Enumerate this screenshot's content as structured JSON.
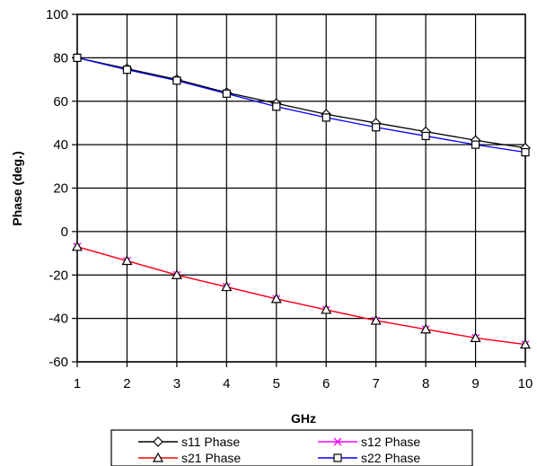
{
  "chart_data": {
    "type": "line",
    "xlabel": "GHz",
    "ylabel": "Phase (deg.)",
    "x": [
      1,
      2,
      3,
      4,
      5,
      6,
      7,
      8,
      9,
      10
    ],
    "xlim": [
      1,
      10
    ],
    "ylim": [
      -60,
      100
    ],
    "xticks": [
      "1",
      "2",
      "3",
      "4",
      "5",
      "6",
      "7",
      "8",
      "9",
      "10"
    ],
    "yticks": [
      "100",
      "80",
      "60",
      "40",
      "20",
      "0",
      "-20",
      "-40",
      "-60"
    ],
    "grid": true,
    "legend_position": "bottom",
    "series": [
      {
        "name": "s11 Phase",
        "color": "#000000",
        "marker": "diamond",
        "values": [
          80,
          75,
          70,
          64,
          59,
          54,
          50,
          46,
          42,
          38.5
        ]
      },
      {
        "name": "s12 Phase",
        "color": "#ff00ff",
        "marker": "x",
        "values": [
          -7,
          -13.5,
          -20,
          -25.5,
          -31,
          -36,
          -41,
          -45,
          -49,
          -52
        ]
      },
      {
        "name": "s21 Phase",
        "color": "#ff0000",
        "marker": "triangle",
        "values": [
          -7,
          -13.5,
          -20,
          -25.5,
          -31,
          -36,
          -41,
          -45,
          -49,
          -52
        ]
      },
      {
        "name": "s22 Phase",
        "color": "#0000ff",
        "marker": "square",
        "values": [
          80,
          74.5,
          69.5,
          63.5,
          57.5,
          52.5,
          48,
          44,
          40,
          36.5
        ]
      }
    ]
  }
}
